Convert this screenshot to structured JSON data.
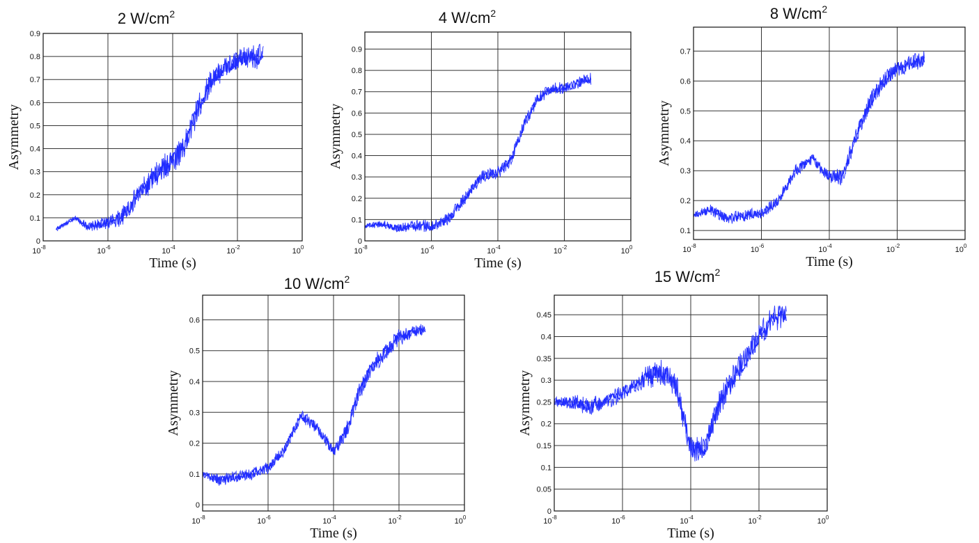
{
  "chart_data": [
    {
      "type": "line",
      "title_main": "2 W/cm",
      "title_exp": "2",
      "xlabel": "Time (s)",
      "ylabel": "Asymmetry",
      "xscale": "log",
      "x_exp_ticks": [
        -8,
        -6,
        -4,
        -2,
        0
      ],
      "y_ticks": [
        "0",
        "0.1",
        "0.2",
        "0.3",
        "0.4",
        "0.5",
        "0.6",
        "0.7",
        "0.8",
        "0.9"
      ],
      "ylim": [
        0,
        0.9
      ],
      "grid": true,
      "color": "#1f2bff",
      "series": [
        {
          "x_exp": [
            -7.6,
            -7.0,
            -6.6,
            -6.0,
            -5.6,
            -5.0,
            -4.4,
            -4.0,
            -3.6,
            -3.2,
            -2.8,
            -2.4,
            -2.0,
            -1.6,
            -1.2
          ],
          "values": [
            0.05,
            0.1,
            0.06,
            0.08,
            0.1,
            0.21,
            0.3,
            0.35,
            0.42,
            0.58,
            0.7,
            0.75,
            0.78,
            0.8,
            0.8
          ],
          "spread": [
            0.01,
            0.01,
            0.02,
            0.03,
            0.04,
            0.05,
            0.06,
            0.06,
            0.06,
            0.06,
            0.05,
            0.05,
            0.05,
            0.05,
            0.06
          ]
        }
      ]
    },
    {
      "type": "line",
      "title_main": "4 W/cm",
      "title_exp": "2",
      "xlabel": "Time (s)",
      "ylabel": "Asymmetry",
      "xscale": "log",
      "x_exp_ticks": [
        -8,
        -6,
        -4,
        -2,
        0
      ],
      "y_ticks": [
        "0",
        "0.1",
        "0.2",
        "0.3",
        "0.4",
        "0.5",
        "0.6",
        "0.7",
        "0.8",
        "0.9"
      ],
      "ylim": [
        0,
        0.98
      ],
      "grid": true,
      "color": "#1f2bff",
      "series": [
        {
          "x_exp": [
            -8.0,
            -7.5,
            -7.0,
            -6.5,
            -6.0,
            -5.5,
            -5.0,
            -4.5,
            -4.0,
            -3.6,
            -3.2,
            -2.8,
            -2.4,
            -2.0,
            -1.6,
            -1.2
          ],
          "values": [
            0.07,
            0.08,
            0.06,
            0.07,
            0.07,
            0.1,
            0.2,
            0.3,
            0.32,
            0.38,
            0.55,
            0.67,
            0.71,
            0.72,
            0.74,
            0.76
          ],
          "spread": [
            0.01,
            0.02,
            0.02,
            0.03,
            0.03,
            0.03,
            0.03,
            0.03,
            0.03,
            0.03,
            0.03,
            0.03,
            0.03,
            0.03,
            0.03,
            0.03
          ]
        }
      ]
    },
    {
      "type": "line",
      "title_main": "8 W/cm",
      "title_exp": "2",
      "xlabel": "Time (s)",
      "ylabel": "Asymmetry",
      "xscale": "log",
      "x_exp_ticks": [
        -8,
        -6,
        -4,
        -2,
        0
      ],
      "y_ticks": [
        "0.1",
        "0.2",
        "0.3",
        "0.4",
        "0.5",
        "0.6",
        "0.7"
      ],
      "ylim": [
        0.07,
        0.78
      ],
      "grid": true,
      "color": "#1f2bff",
      "series": [
        {
          "x_exp": [
            -8.0,
            -7.5,
            -7.0,
            -6.5,
            -6.0,
            -5.5,
            -5.0,
            -4.5,
            -4.0,
            -3.6,
            -3.2,
            -2.8,
            -2.4,
            -2.0,
            -1.6,
            -1.2
          ],
          "values": [
            0.15,
            0.17,
            0.14,
            0.15,
            0.16,
            0.2,
            0.3,
            0.34,
            0.28,
            0.28,
            0.42,
            0.53,
            0.6,
            0.64,
            0.66,
            0.67
          ],
          "spread": [
            0.01,
            0.02,
            0.02,
            0.02,
            0.02,
            0.02,
            0.02,
            0.02,
            0.02,
            0.03,
            0.03,
            0.03,
            0.03,
            0.03,
            0.03,
            0.03
          ]
        }
      ]
    },
    {
      "type": "line",
      "title_main": "10 W/cm",
      "title_exp": "2",
      "xlabel": "Time (s)",
      "ylabel": "Asymmetry",
      "xscale": "log",
      "x_exp_ticks": [
        -8,
        -6,
        -4,
        -2,
        0
      ],
      "y_ticks": [
        "0",
        "0.1",
        "0.2",
        "0.3",
        "0.4",
        "0.5",
        "0.6"
      ],
      "ylim": [
        -0.02,
        0.68
      ],
      "grid": true,
      "color": "#1f2bff",
      "series": [
        {
          "x_exp": [
            -8.0,
            -7.5,
            -7.0,
            -6.5,
            -6.0,
            -5.5,
            -5.0,
            -4.5,
            -4.0,
            -3.6,
            -3.2,
            -2.8,
            -2.4,
            -2.0,
            -1.6,
            -1.2
          ],
          "values": [
            0.1,
            0.08,
            0.09,
            0.1,
            0.12,
            0.18,
            0.29,
            0.25,
            0.17,
            0.24,
            0.37,
            0.45,
            0.5,
            0.54,
            0.56,
            0.57
          ],
          "spread": [
            0.01,
            0.02,
            0.02,
            0.02,
            0.02,
            0.02,
            0.02,
            0.02,
            0.02,
            0.03,
            0.03,
            0.03,
            0.03,
            0.03,
            0.02,
            0.02
          ]
        }
      ]
    },
    {
      "type": "line",
      "title_main": "15 W/cm",
      "title_exp": "2",
      "xlabel": "Time (s)",
      "ylabel": "Asymmetry",
      "xscale": "log",
      "x_exp_ticks": [
        -8,
        -6,
        -4,
        -2,
        0
      ],
      "y_ticks": [
        "0",
        "0.05",
        "0.1",
        "0.15",
        "0.2",
        "0.25",
        "0.3",
        "0.35",
        "0.4",
        "0.45"
      ],
      "ylim": [
        0,
        0.495
      ],
      "grid": true,
      "color": "#1f2bff",
      "series": [
        {
          "x_exp": [
            -8.0,
            -7.5,
            -7.0,
            -6.5,
            -6.0,
            -5.6,
            -5.2,
            -4.8,
            -4.4,
            -4.0,
            -3.6,
            -3.2,
            -2.8,
            -2.4,
            -2.0,
            -1.6,
            -1.2
          ],
          "values": [
            0.25,
            0.25,
            0.24,
            0.25,
            0.27,
            0.29,
            0.31,
            0.32,
            0.28,
            0.14,
            0.14,
            0.24,
            0.3,
            0.35,
            0.4,
            0.44,
            0.45
          ],
          "spread": [
            0.01,
            0.02,
            0.02,
            0.02,
            0.02,
            0.02,
            0.03,
            0.03,
            0.03,
            0.03,
            0.03,
            0.03,
            0.03,
            0.03,
            0.03,
            0.03,
            0.03
          ]
        }
      ]
    }
  ]
}
